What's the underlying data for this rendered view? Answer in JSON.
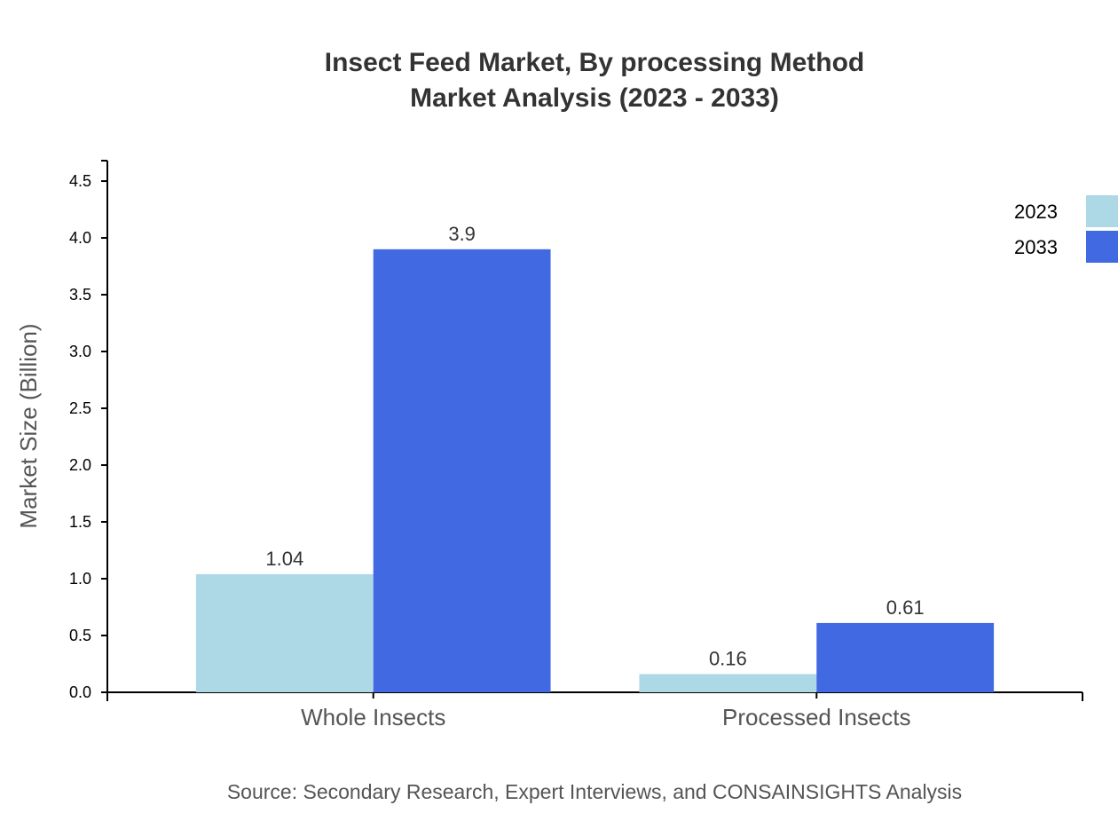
{
  "chart_data": {
    "type": "bar",
    "title": "Insect Feed Market, By processing Method",
    "subtitle": "Market Analysis (2023 - 2033)",
    "xlabel": "",
    "ylabel": "Market Size (Billion)",
    "categories": [
      "Whole Insects",
      "Processed Insects"
    ],
    "series": [
      {
        "name": "2023",
        "values": [
          1.04,
          0.16
        ],
        "labels": [
          "1.04",
          "0.16"
        ],
        "color": "#add8e6"
      },
      {
        "name": "2033",
        "values": [
          3.9,
          0.61
        ],
        "labels": [
          "3.9",
          "0.61"
        ],
        "color": "#4169e1"
      }
    ],
    "ylim": [
      0,
      4.68
    ],
    "yticks": [
      "0.0",
      "0.5",
      "1.0",
      "1.5",
      "2.0",
      "2.5",
      "3.0",
      "3.5",
      "4.0",
      "4.5"
    ],
    "grid": false,
    "legend_position": "top-right",
    "source": "Source: Secondary Research, Expert Interviews, and CONSAINSIGHTS Analysis"
  }
}
